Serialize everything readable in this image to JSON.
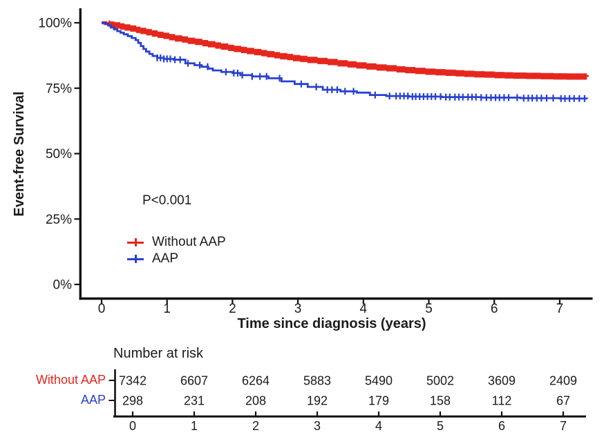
{
  "figure": {
    "p_value": "P<0.001",
    "legend": {
      "items": [
        {
          "label": "Without AAP",
          "color": "#E5261D"
        },
        {
          "label": "AAP",
          "color": "#2840D0"
        }
      ]
    }
  },
  "chart_data": {
    "type": "line",
    "subtype": "kaplan-meier-survival-step",
    "title": "",
    "xlabel": "Time since diagnosis (years)",
    "ylabel": "Event-free Survival",
    "xlim": [
      -0.34,
      7.48
    ],
    "ylim": [
      0,
      100
    ],
    "grid": false,
    "legend_position": "inside-left-lower",
    "annotation": "P<0.001",
    "x_ticks": [
      "0",
      "1",
      "2",
      "3",
      "4",
      "5",
      "6",
      "7"
    ],
    "y_ticks": [
      {
        "value": 100,
        "label": "100%"
      },
      {
        "value": 75,
        "label": "75%"
      },
      {
        "value": 50,
        "label": "50%"
      },
      {
        "value": 25,
        "label": "25%"
      },
      {
        "value": 0,
        "label": "0%"
      }
    ],
    "series": [
      {
        "name": "Without AAP",
        "color": "#E5261D",
        "points": [
          [
            0,
            100
          ],
          [
            0.06,
            99.7
          ],
          [
            0.13,
            99.3
          ],
          [
            0.2,
            99.0
          ],
          [
            0.28,
            98.6
          ],
          [
            0.36,
            98.2
          ],
          [
            0.44,
            97.8
          ],
          [
            0.52,
            97.3
          ],
          [
            0.6,
            96.9
          ],
          [
            0.68,
            96.4
          ],
          [
            0.76,
            95.9
          ],
          [
            0.85,
            95.4
          ],
          [
            0.94,
            95.0
          ],
          [
            1.03,
            94.5
          ],
          [
            1.13,
            94.0
          ],
          [
            1.23,
            93.6
          ],
          [
            1.33,
            93.1
          ],
          [
            1.43,
            92.7
          ],
          [
            1.53,
            92.2
          ],
          [
            1.63,
            91.8
          ],
          [
            1.73,
            91.3
          ],
          [
            1.83,
            90.9
          ],
          [
            1.93,
            90.4
          ],
          [
            2.03,
            90.0
          ],
          [
            2.13,
            89.6
          ],
          [
            2.23,
            89.2
          ],
          [
            2.33,
            88.8
          ],
          [
            2.43,
            88.4
          ],
          [
            2.53,
            88.0
          ],
          [
            2.63,
            87.6
          ],
          [
            2.73,
            87.2
          ],
          [
            2.83,
            86.9
          ],
          [
            2.93,
            86.5
          ],
          [
            3.03,
            86.2
          ],
          [
            3.15,
            85.8
          ],
          [
            3.3,
            85.4
          ],
          [
            3.45,
            85.0
          ],
          [
            3.6,
            84.5
          ],
          [
            3.75,
            84.1
          ],
          [
            3.9,
            83.7
          ],
          [
            4.05,
            83.3
          ],
          [
            4.2,
            82.9
          ],
          [
            4.35,
            82.6
          ],
          [
            4.5,
            82.2
          ],
          [
            4.65,
            81.9
          ],
          [
            4.8,
            81.6
          ],
          [
            4.95,
            81.3
          ],
          [
            5.1,
            81.1
          ],
          [
            5.25,
            80.9
          ],
          [
            5.4,
            80.7
          ],
          [
            5.55,
            80.5
          ],
          [
            5.7,
            80.3
          ],
          [
            5.85,
            80.2
          ],
          [
            6.0,
            80.0
          ],
          [
            6.15,
            79.9
          ],
          [
            6.3,
            79.8
          ],
          [
            6.5,
            79.7
          ],
          [
            6.7,
            79.6
          ],
          [
            6.9,
            79.5
          ],
          [
            7.1,
            79.45
          ],
          [
            7.42,
            79.4
          ]
        ],
        "censor_marks": {
          "mode": "dense",
          "from": 0.12,
          "to": 7.42,
          "step": 0.022
        }
      },
      {
        "name": "AAP",
        "color": "#2840D0",
        "points": [
          [
            0,
            100
          ],
          [
            0.06,
            99.6
          ],
          [
            0.1,
            99.0
          ],
          [
            0.14,
            98.2
          ],
          [
            0.19,
            97.5
          ],
          [
            0.24,
            96.8
          ],
          [
            0.29,
            96.2
          ],
          [
            0.34,
            95.6
          ],
          [
            0.4,
            94.9
          ],
          [
            0.46,
            94.2
          ],
          [
            0.52,
            93.4
          ],
          [
            0.56,
            92.3
          ],
          [
            0.6,
            91.1
          ],
          [
            0.64,
            90.0
          ],
          [
            0.68,
            89.0
          ],
          [
            0.73,
            88.1
          ],
          [
            0.78,
            87.3
          ],
          [
            0.85,
            86.6
          ],
          [
            0.95,
            86.2
          ],
          [
            1.1,
            85.9
          ],
          [
            1.28,
            84.5
          ],
          [
            1.42,
            83.8
          ],
          [
            1.53,
            83.2
          ],
          [
            1.63,
            82.5
          ],
          [
            1.7,
            81.8
          ],
          [
            1.83,
            81.2
          ],
          [
            2.0,
            80.8
          ],
          [
            2.12,
            80.0
          ],
          [
            2.3,
            79.5
          ],
          [
            2.55,
            78.8
          ],
          [
            2.75,
            77.6
          ],
          [
            2.95,
            76.6
          ],
          [
            3.15,
            75.5
          ],
          [
            3.38,
            74.4
          ],
          [
            3.65,
            73.8
          ],
          [
            3.9,
            73.3
          ],
          [
            4.1,
            72.4
          ],
          [
            4.35,
            72.0
          ],
          [
            4.7,
            71.8
          ],
          [
            5.2,
            71.6
          ],
          [
            5.8,
            71.4
          ],
          [
            6.4,
            71.2
          ],
          [
            7.0,
            71.05
          ],
          [
            7.42,
            71.0
          ]
        ],
        "censor_marks": {
          "mode": "list",
          "times": [
            0.85,
            0.9,
            0.95,
            1.0,
            1.05,
            1.12,
            1.2,
            1.32,
            1.5,
            1.62,
            1.9,
            2.02,
            2.08,
            2.15,
            2.3,
            2.42,
            2.52,
            2.72,
            3.05,
            3.28,
            3.45,
            3.52,
            3.6,
            3.72,
            3.85,
            4.18,
            4.4,
            4.5,
            4.56,
            4.62,
            4.68,
            4.75,
            4.8,
            4.86,
            4.92,
            4.98,
            5.04,
            5.1,
            5.18,
            5.26,
            5.32,
            5.4,
            5.46,
            5.52,
            5.6,
            5.66,
            5.72,
            5.8,
            5.88,
            5.95,
            6.02,
            6.08,
            6.15,
            6.22,
            6.35,
            6.45,
            6.52,
            6.58,
            6.65,
            6.72,
            6.8,
            6.9,
            7.02,
            7.08,
            7.15,
            7.22,
            7.3,
            7.38
          ]
        }
      }
    ],
    "risk_table": {
      "title": "Number at risk",
      "axis_labels": [
        "0",
        "1",
        "2",
        "3",
        "4",
        "5",
        "6",
        "7"
      ],
      "rows": [
        {
          "label": "Without AAP",
          "color": "#E5261D",
          "values": [
            "7342",
            "6607",
            "6264",
            "5883",
            "5490",
            "5002",
            "3609",
            "2409"
          ]
        },
        {
          "label": "AAP",
          "color": "#2840D0",
          "values": [
            "298",
            "231",
            "208",
            "192",
            "179",
            "158",
            "112",
            "67"
          ]
        }
      ]
    }
  }
}
